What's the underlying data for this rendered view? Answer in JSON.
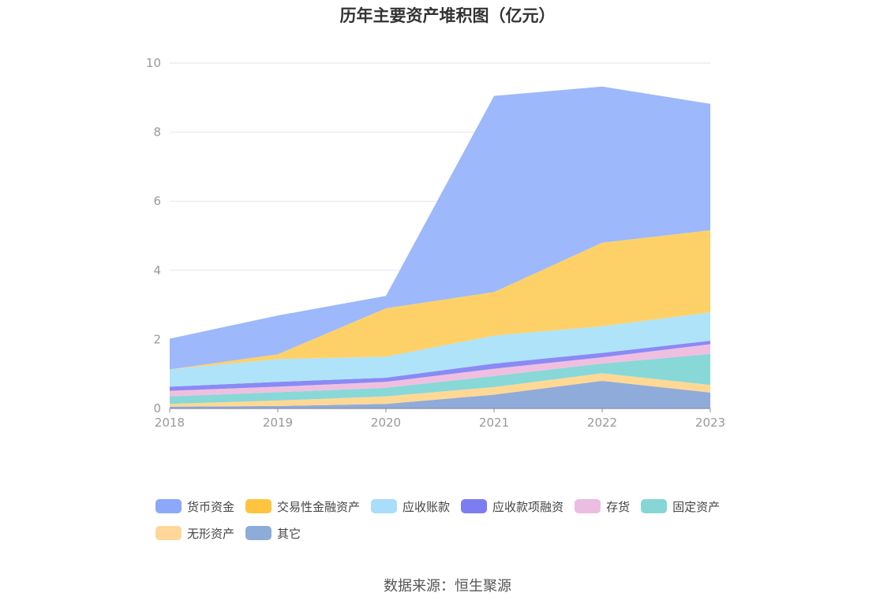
{
  "title": "历年主要资产堆积图（亿元）",
  "source": "数据来源：恒生聚源",
  "chart_data": {
    "type": "area",
    "stacked": true,
    "title": "历年主要资产堆积图（亿元）",
    "xlabel": "",
    "ylabel": "",
    "x": [
      "2018",
      "2019",
      "2020",
      "2021",
      "2022",
      "2023"
    ],
    "ylim": [
      0,
      10
    ],
    "yticks": [
      0,
      2,
      4,
      6,
      8,
      10
    ],
    "grid": true,
    "legend_position": "bottom",
    "series": [
      {
        "name": "其它",
        "color": "#8fabd9",
        "values": [
          0.05,
          0.07,
          0.13,
          0.4,
          0.8,
          0.46
        ]
      },
      {
        "name": "无形资产",
        "color": "#ffd894",
        "values": [
          0.08,
          0.16,
          0.22,
          0.22,
          0.22,
          0.22
        ]
      },
      {
        "name": "固定资产",
        "color": "#88d8d8",
        "values": [
          0.22,
          0.24,
          0.25,
          0.32,
          0.28,
          0.9
        ]
      },
      {
        "name": "存货",
        "color": "#f0bfe0",
        "values": [
          0.16,
          0.16,
          0.17,
          0.21,
          0.18,
          0.28
        ]
      },
      {
        "name": "应收款项融资",
        "color": "#8a8af5",
        "values": [
          0.12,
          0.14,
          0.12,
          0.15,
          0.13,
          0.1
        ]
      },
      {
        "name": "应收账款",
        "color": "#aee3fa",
        "values": [
          0.5,
          0.66,
          0.61,
          0.81,
          0.77,
          0.82
        ]
      },
      {
        "name": "交易性金融资产",
        "color": "#fdd168",
        "values": [
          0.0,
          0.14,
          1.4,
          1.26,
          2.42,
          2.38
        ]
      },
      {
        "name": "货币资金",
        "color": "#9db8fb",
        "values": [
          0.89,
          1.12,
          0.36,
          5.68,
          4.52,
          3.66
        ]
      }
    ]
  },
  "legend": [
    {
      "label": "货币资金",
      "color": "#8ba8fa"
    },
    {
      "label": "交易性金融资产",
      "color": "#fec43f"
    },
    {
      "label": "应收账款",
      "color": "#a8defa"
    },
    {
      "label": "应收款项融资",
      "color": "#7d7df2"
    },
    {
      "label": "存货",
      "color": "#ebbde0"
    },
    {
      "label": "固定资产",
      "color": "#86d6d6"
    },
    {
      "label": "无形资产",
      "color": "#ffd79a"
    },
    {
      "label": "其它",
      "color": "#8eacd8"
    }
  ]
}
